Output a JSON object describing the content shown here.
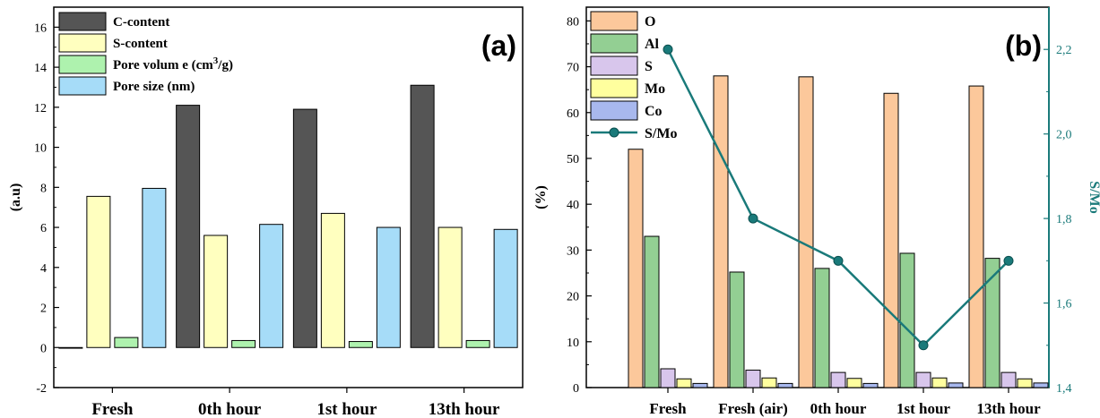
{
  "chart_data": [
    {
      "type": "bar",
      "panel_label": "(a)",
      "ylabel": "(a.u)",
      "ylim": [
        -2,
        17
      ],
      "yticks": [
        -2,
        0,
        2,
        4,
        6,
        8,
        10,
        12,
        14,
        16
      ],
      "categories": [
        "Fresh",
        "0th hour",
        "1st hour",
        "13th hour"
      ],
      "legend_position": "top-left",
      "series": [
        {
          "name": "C-content",
          "color": "#555555",
          "values": [
            0,
            12.1,
            11.9,
            13.1
          ]
        },
        {
          "name": "S-content",
          "color": "#ffffbf",
          "values": [
            7.55,
            5.6,
            6.7,
            6.0
          ]
        },
        {
          "name": "Pore volume (cm3/g)",
          "name_base": "Pore volum e (cm",
          "name_sup": "3",
          "name_end": "/g)",
          "color": "#aef2ae",
          "values": [
            0.5,
            0.35,
            0.3,
            0.35
          ]
        },
        {
          "name": "Pore size (nm)",
          "color": "#a6dcf8",
          "values": [
            7.95,
            6.15,
            6.0,
            5.9
          ]
        }
      ]
    },
    {
      "type": "bar",
      "panel_label": "(b)",
      "ylabel": "(%)",
      "ylabel_right": "S/Mo",
      "ylim": [
        0,
        83
      ],
      "yticks": [
        0,
        10,
        20,
        30,
        40,
        50,
        60,
        70,
        80
      ],
      "ylim_right": [
        1.4,
        2.3
      ],
      "yticks_right": [
        "1,4",
        "1,6",
        "1,8",
        "2,0",
        "2,2"
      ],
      "yticks_right_values": [
        1.4,
        1.6,
        1.8,
        2.0,
        2.2
      ],
      "categories": [
        "Fresh",
        "Fresh (air)",
        "0th hour",
        "1st hour",
        "13th hour"
      ],
      "legend_position": "top-left",
      "series": [
        {
          "name": "O",
          "color": "#fcc89b",
          "values": [
            52,
            68,
            67.8,
            64.2,
            65.8
          ]
        },
        {
          "name": "Al",
          "color": "#93cf93",
          "values": [
            33,
            25.2,
            26,
            29.3,
            28.2
          ]
        },
        {
          "name": "S",
          "color": "#d8c6ec",
          "values": [
            4.1,
            3.8,
            3.3,
            3.3,
            3.3
          ]
        },
        {
          "name": "Mo",
          "color": "#ffff9e",
          "values": [
            1.9,
            2.1,
            2.0,
            2.1,
            1.9
          ]
        },
        {
          "name": "Co",
          "color": "#a8b8ee",
          "values": [
            0.9,
            0.9,
            0.9,
            1.0,
            1.0
          ]
        }
      ],
      "line_series": {
        "name": "S/Mo",
        "color": "#1a7a7a",
        "axis": "right",
        "values": [
          2.2,
          1.8,
          1.7,
          1.5,
          1.7
        ]
      }
    }
  ]
}
